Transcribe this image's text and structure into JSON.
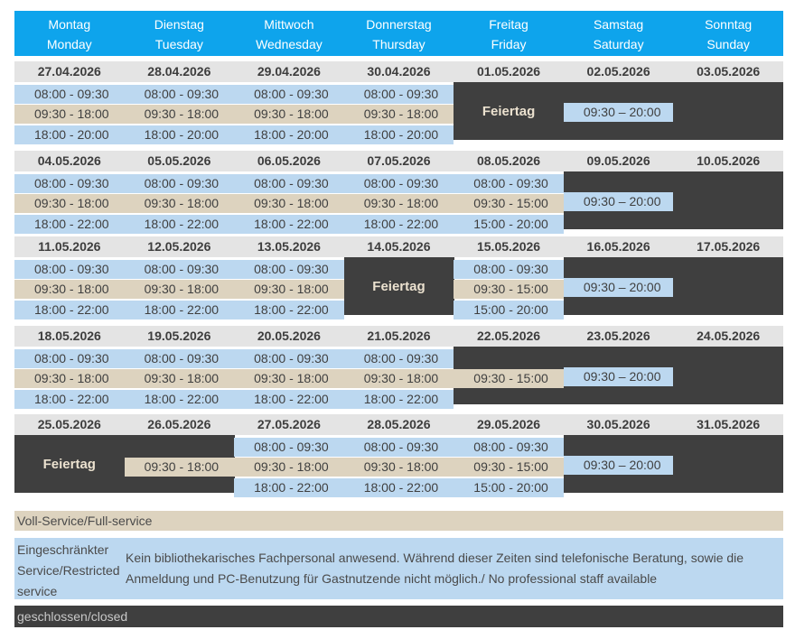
{
  "header": {
    "days": [
      {
        "de": "Montag",
        "en": "Monday"
      },
      {
        "de": "Dienstag",
        "en": "Tuesday"
      },
      {
        "de": "Mittwoch",
        "en": "Wednesday"
      },
      {
        "de": "Donnerstag",
        "en": "Thursday"
      },
      {
        "de": "Freitag",
        "en": "Friday"
      },
      {
        "de": "Samstag",
        "en": "Saturday"
      },
      {
        "de": "Sonntag",
        "en": "Sunday"
      }
    ]
  },
  "weeks": [
    {
      "dates": [
        "27.04.2026",
        "28.04.2026",
        "29.04.2026",
        "30.04.2026",
        "01.05.2026",
        "02.05.2026",
        "03.05.2026"
      ],
      "days": [
        {
          "early": "08:00 - 09:30",
          "full": "09:30 - 18:00",
          "late": "18:00 - 20:00"
        },
        {
          "early": "08:00 - 09:30",
          "full": "09:30 - 18:00",
          "late": "18:00 - 20:00"
        },
        {
          "early": "08:00 - 09:30",
          "full": "09:30 - 18:00",
          "late": "18:00 - 20:00"
        },
        {
          "early": "08:00 - 09:30",
          "full": "09:30 - 18:00",
          "late": "18:00 - 20:00"
        },
        {
          "holiday": "Feiertag"
        },
        {
          "restricted": "09:30 – 20:00"
        },
        {
          "closed": true
        }
      ]
    },
    {
      "dates": [
        "04.05.2026",
        "05.05.2026",
        "06.05.2026",
        "07.05.2026",
        "08.05.2026",
        "09.05.2026",
        "10.05.2026"
      ],
      "days": [
        {
          "early": "08:00 - 09:30",
          "full": "09:30 - 18:00",
          "late": "18:00 - 22:00"
        },
        {
          "early": "08:00 - 09:30",
          "full": "09:30 - 18:00",
          "late": "18:00 - 22:00"
        },
        {
          "early": "08:00 - 09:30",
          "full": "09:30 - 18:00",
          "late": "18:00 - 22:00"
        },
        {
          "early": "08:00 - 09:30",
          "full": "09:30 - 18:00",
          "late": "18:00 - 22:00"
        },
        {
          "early": "08:00 - 09:30",
          "full": "09:30 - 15:00",
          "late": "15:00 - 20:00"
        },
        {
          "restricted": "09:30 – 20:00"
        },
        {
          "closed": true
        }
      ]
    },
    {
      "dates": [
        "11.05.2026",
        "12.05.2026",
        "13.05.2026",
        "14.05.2026",
        "15.05.2026",
        "16.05.2026",
        "17.05.2026"
      ],
      "days": [
        {
          "early": "08:00 - 09:30",
          "full": "09:30 - 18:00",
          "late": "18:00 - 22:00"
        },
        {
          "early": "08:00 - 09:30",
          "full": "09:30 - 18:00",
          "late": "18:00 - 22:00"
        },
        {
          "early": "08:00 - 09:30",
          "full": "09:30 - 18:00",
          "late": "18:00 - 22:00"
        },
        {
          "holiday": "Feiertag"
        },
        {
          "early": "08:00 - 09:30",
          "full": "09:30 - 15:00",
          "late": "15:00 - 20:00"
        },
        {
          "restricted": "09:30 – 20:00"
        },
        {
          "closed": true
        }
      ]
    },
    {
      "dates": [
        "18.05.2026",
        "19.05.2026",
        "20.05.2026",
        "21.05.2026",
        "22.05.2026",
        "23.05.2026",
        "24.05.2026"
      ],
      "days": [
        {
          "early": "08:00 - 09:30",
          "full": "09:30 - 18:00",
          "late": "18:00 - 22:00"
        },
        {
          "early": "08:00 - 09:30",
          "full": "09:30 - 18:00",
          "late": "18:00 - 22:00"
        },
        {
          "early": "08:00 - 09:30",
          "full": "09:30 - 18:00",
          "late": "18:00 - 22:00"
        },
        {
          "early": "08:00 - 09:30",
          "full": "09:30 - 18:00",
          "late": "18:00 - 22:00"
        },
        {
          "full": "09:30 - 15:00"
        },
        {
          "restricted": "09:30 – 20:00"
        },
        {
          "closed": true
        }
      ]
    },
    {
      "dates": [
        "25.05.2026",
        "26.05.2026",
        "27.05.2026",
        "28.05.2026",
        "29.05.2026",
        "30.05.2026",
        "31.05.2026"
      ],
      "days": [
        {
          "holiday": "Feiertag"
        },
        {
          "full": "09:30 - 18:00"
        },
        {
          "early": "08:00 - 09:30",
          "full": "09:30 - 18:00",
          "late": "18:00 - 22:00"
        },
        {
          "early": "08:00 - 09:30",
          "full": "09:30 - 18:00",
          "late": "18:00 - 22:00"
        },
        {
          "early": "08:00 - 09:30",
          "full": "09:30 - 15:00",
          "late": "15:00 - 20:00"
        },
        {
          "restricted": "09:30 – 20:00"
        },
        {
          "closed": true
        }
      ]
    }
  ],
  "legend": {
    "full": "Voll-Service/Full-service",
    "restricted_label": "Eingeschränkter Service/Restricted service",
    "restricted_text": "Kein bibliothekarisches Fachpersonal anwesend. Während dieser Zeiten sind telefonische Beratung, sowie die Anmeldung und PC-Benutzung für Gastnutzende nicht möglich./ No professional staff available",
    "closed": "geschlossen/closed"
  },
  "colors": {
    "header": "#0ea4ec",
    "full_service": "#ddd3bf",
    "restricted": "#bcd8f0",
    "closed": "#3f3f3f",
    "date_row": "#e4e4e4"
  }
}
